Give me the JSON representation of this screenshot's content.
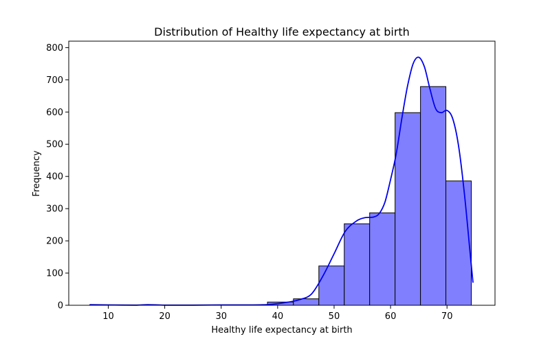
{
  "chart_data": {
    "type": "bar",
    "title": "Distribution of Healthy life expectancy at birth",
    "xlabel": "Healthy life expectancy at birth",
    "ylabel": "Frequency",
    "xlim": [
      3.0,
      78.5
    ],
    "ylim": [
      0,
      820
    ],
    "xticks": [
      10,
      20,
      30,
      40,
      50,
      60,
      70
    ],
    "yticks": [
      0,
      100,
      200,
      300,
      400,
      500,
      600,
      700,
      800
    ],
    "bins": [
      {
        "x0": 6.7,
        "x1": 11.2,
        "count": 1
      },
      {
        "x0": 11.2,
        "x1": 15.7,
        "count": 0
      },
      {
        "x0": 15.7,
        "x1": 20.2,
        "count": 1
      },
      {
        "x0": 20.2,
        "x1": 24.7,
        "count": 0
      },
      {
        "x0": 24.7,
        "x1": 29.2,
        "count": 0
      },
      {
        "x0": 29.2,
        "x1": 33.7,
        "count": 0
      },
      {
        "x0": 33.7,
        "x1": 38.2,
        "count": 1
      },
      {
        "x0": 38.2,
        "x1": 42.8,
        "count": 10
      },
      {
        "x0": 42.8,
        "x1": 47.3,
        "count": 20
      },
      {
        "x0": 47.3,
        "x1": 51.8,
        "count": 122
      },
      {
        "x0": 51.8,
        "x1": 56.3,
        "count": 253
      },
      {
        "x0": 56.3,
        "x1": 60.8,
        "count": 287
      },
      {
        "x0": 60.8,
        "x1": 65.3,
        "count": 598
      },
      {
        "x0": 65.3,
        "x1": 69.8,
        "count": 679
      },
      {
        "x0": 69.8,
        "x1": 74.3,
        "count": 386
      }
    ],
    "kde": {
      "x": [
        6.7,
        10,
        15,
        17,
        20,
        25,
        30,
        35,
        38,
        40,
        42,
        44,
        46,
        48,
        50,
        52,
        54,
        55.5,
        57,
        58,
        59,
        60,
        61,
        62,
        63,
        64,
        65,
        66,
        67,
        68,
        69,
        70,
        71,
        72,
        73,
        74,
        74.6
      ],
      "y": [
        2,
        1,
        0.5,
        2,
        0.5,
        0.5,
        1,
        1,
        2,
        5,
        10,
        18,
        35,
        90,
        160,
        230,
        262,
        272,
        274,
        285,
        320,
        390,
        470,
        580,
        680,
        750,
        770,
        740,
        670,
        610,
        598,
        605,
        580,
        500,
        360,
        180,
        70
      ]
    },
    "colors": {
      "bar_fill": "#8080ff",
      "bar_edge": "#000000",
      "kde_line": "#0000ee"
    },
    "grid": false,
    "legend": "none"
  }
}
